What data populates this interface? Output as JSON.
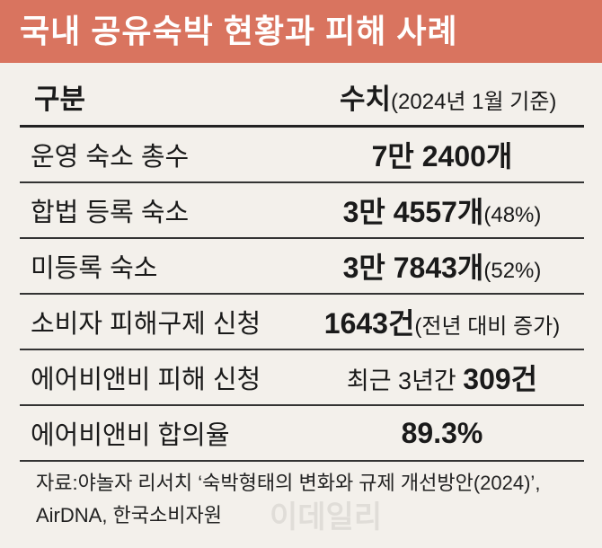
{
  "header": {
    "title": "국내 공유숙박 현황과 피해 사례"
  },
  "table": {
    "columns": {
      "label": "구분",
      "value": "수치",
      "note": "(2024년 1월 기준)"
    },
    "rows": [
      {
        "label": "운영 숙소 총수",
        "value": "7만 2400개"
      },
      {
        "label": "합법 등록 숙소",
        "value": "3만 4557개",
        "note": "(48%)"
      },
      {
        "label": "미등록 숙소",
        "value": "3만 7843개",
        "note": "(52%)"
      },
      {
        "label": "소비자 피해구제 신청",
        "value": "1643건",
        "note": "(전년 대비 증가)"
      },
      {
        "label": "에어비앤비 피해 신청",
        "prefix": "최근 3년간",
        "value": "309건"
      },
      {
        "label": "에어비앤비 합의율",
        "value": "89.3%"
      }
    ]
  },
  "footer": {
    "source": [
      "자료:야놀자 리서치 ‘숙박형태의 변화와 규제 개선방안(2024)’,",
      "AirDNA, 한국소비자원"
    ],
    "watermark": "이데일리"
  }
}
